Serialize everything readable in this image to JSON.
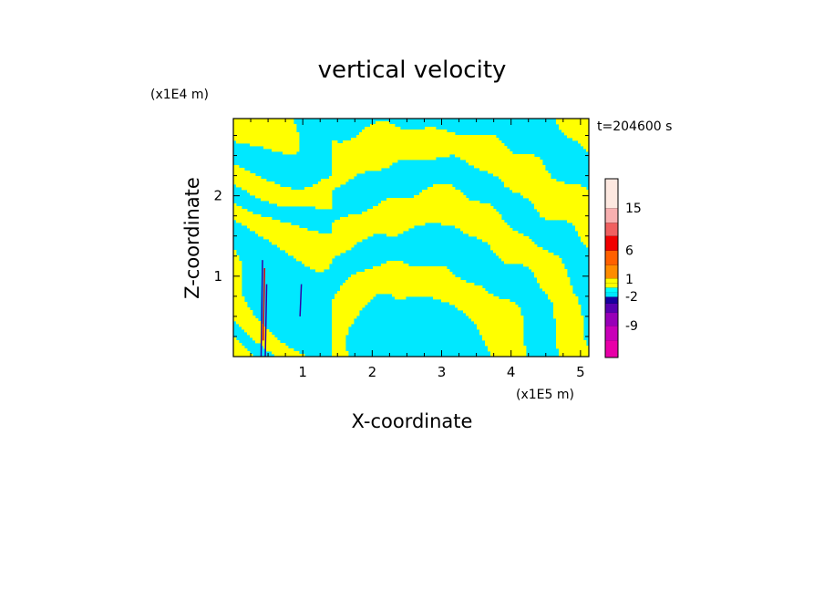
{
  "chart_data": {
    "type": "heatmap",
    "title": "vertical velocity",
    "xlabel": "X-coordinate",
    "ylabel": "Z-coordinate",
    "x_unit": "(x1E5 m)",
    "y_unit": "(x1E4 m)",
    "time_label": "t=204600 s",
    "x_ticks": [
      "1",
      "2",
      "3",
      "4",
      "5"
    ],
    "y_ticks": [
      "1",
      "2"
    ],
    "xlim": [
      0,
      5.12
    ],
    "ylim": [
      0,
      2.96
    ],
    "colorbar": {
      "colors": [
        "#e800a8",
        "#c800b8",
        "#9800b8",
        "#5800b0",
        "#1800a0",
        "#00e8ff",
        "#00ffff",
        "#ffff00",
        "#ffff00",
        "#ff8c00",
        "#ff6000",
        "#f00000",
        "#f06060",
        "#f8b0b0",
        "#fde8e0"
      ],
      "tick_labels": [
        "-9",
        "-2",
        "1",
        "6",
        "15"
      ]
    },
    "field_colors": {
      "positive": "#ffff00",
      "negative": "#00e8ff",
      "strong_positive": "#e00000",
      "strong_negative": "#3000a8"
    }
  }
}
